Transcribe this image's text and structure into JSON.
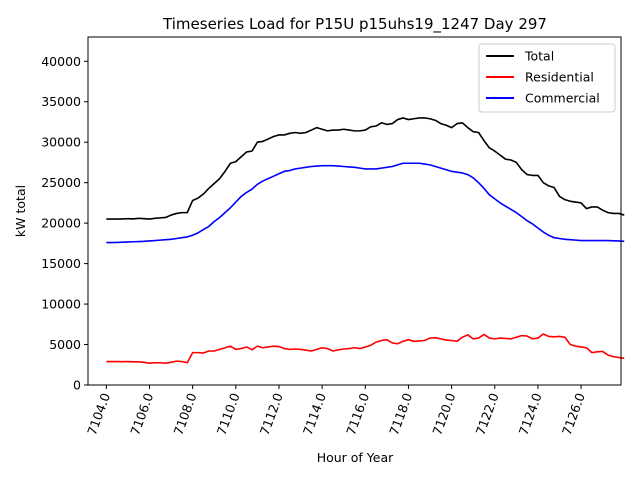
{
  "chart_data": {
    "type": "line",
    "title": "Timeseries Load for P15U p15uhs19_1247  Day 297",
    "xlabel": "Hour of Year",
    "ylabel": "kW total",
    "xlim": [
      7103.15,
      7127.85
    ],
    "ylim": [
      0,
      43000
    ],
    "xticks": [
      7104,
      7106,
      7108,
      7110,
      7112,
      7114,
      7116,
      7118,
      7120,
      7122,
      7124,
      7126
    ],
    "xtick_labels": [
      "7104.0",
      "7106.0",
      "7108.0",
      "7110.0",
      "7112.0",
      "7114.0",
      "7116.0",
      "7118.0",
      "7120.0",
      "7122.0",
      "7124.0",
      "7126.0"
    ],
    "yticks": [
      0,
      5000,
      10000,
      15000,
      20000,
      25000,
      30000,
      35000,
      40000
    ],
    "ytick_labels": [
      "0",
      "5000",
      "10000",
      "15000",
      "20000",
      "25000",
      "30000",
      "35000",
      "40000"
    ],
    "x_start": 7104.0,
    "x_step": 0.25,
    "legend_position": "top-right",
    "grid": false,
    "series": [
      {
        "name": "Total",
        "color": "#000000",
        "values": [
          20500,
          20500,
          20500,
          20520,
          20550,
          20520,
          20600,
          20550,
          20500,
          20600,
          20650,
          20700,
          21000,
          21200,
          21300,
          21300,
          22800,
          23100,
          23600,
          24300,
          24900,
          25500,
          26400,
          27400,
          27600,
          28200,
          28800,
          28900,
          30000,
          30100,
          30400,
          30700,
          30900,
          30900,
          31100,
          31200,
          31100,
          31200,
          31500,
          31800,
          31600,
          31400,
          31500,
          31500,
          31600,
          31500,
          31400,
          31400,
          31500,
          31900,
          32000,
          32400,
          32200,
          32300,
          32800,
          33000,
          32800,
          32900,
          33000,
          33000,
          32900,
          32700,
          32300,
          32100,
          31800,
          32300,
          32400,
          31800,
          31300,
          31200,
          30200,
          29300,
          28900,
          28400,
          27900,
          27800,
          27500,
          26600,
          26000,
          25900,
          25900,
          25000,
          24600,
          24400,
          23300,
          22900,
          22700,
          22600,
          22500,
          21800,
          22000,
          22000,
          21600,
          21300,
          21200,
          21200,
          21000
        ]
      },
      {
        "name": "Residential",
        "color": "#ff0000",
        "values": [
          2900,
          2900,
          2900,
          2880,
          2900,
          2860,
          2870,
          2800,
          2700,
          2750,
          2750,
          2700,
          2800,
          2950,
          2900,
          2750,
          4000,
          4000,
          3950,
          4200,
          4200,
          4400,
          4600,
          4800,
          4400,
          4500,
          4700,
          4350,
          4800,
          4600,
          4700,
          4800,
          4750,
          4500,
          4400,
          4450,
          4400,
          4300,
          4200,
          4400,
          4600,
          4500,
          4200,
          4350,
          4450,
          4500,
          4600,
          4500,
          4700,
          4900,
          5300,
          5500,
          5600,
          5200,
          5100,
          5400,
          5600,
          5400,
          5450,
          5500,
          5800,
          5850,
          5700,
          5550,
          5500,
          5400,
          5900,
          6200,
          5700,
          5800,
          6250,
          5800,
          5700,
          5800,
          5750,
          5700,
          5900,
          6100,
          6050,
          5700,
          5800,
          6300,
          6000,
          5950,
          6000,
          5900,
          5000,
          4800,
          4700,
          4600,
          4000,
          4100,
          4150,
          3700,
          3500,
          3400,
          3300
        ]
      },
      {
        "name": "Commercial",
        "color": "#0000ff",
        "values": [
          17600,
          17600,
          17620,
          17650,
          17680,
          17700,
          17720,
          17750,
          17800,
          17850,
          17900,
          17950,
          18000,
          18100,
          18200,
          18300,
          18500,
          18800,
          19200,
          19600,
          20200,
          20700,
          21300,
          21900,
          22600,
          23300,
          23800,
          24200,
          24800,
          25200,
          25500,
          25800,
          26100,
          26400,
          26500,
          26700,
          26800,
          26900,
          27000,
          27050,
          27100,
          27100,
          27100,
          27050,
          27000,
          26950,
          26900,
          26800,
          26700,
          26700,
          26700,
          26800,
          26900,
          27000,
          27200,
          27400,
          27400,
          27400,
          27400,
          27300,
          27200,
          27000,
          26800,
          26600,
          26400,
          26300,
          26200,
          26000,
          25600,
          25000,
          24300,
          23500,
          23000,
          22500,
          22100,
          21700,
          21300,
          20800,
          20300,
          19900,
          19400,
          18900,
          18500,
          18200,
          18100,
          18000,
          17950,
          17900,
          17850,
          17850,
          17850,
          17850,
          17850,
          17850,
          17820,
          17800,
          17750
        ]
      }
    ]
  }
}
